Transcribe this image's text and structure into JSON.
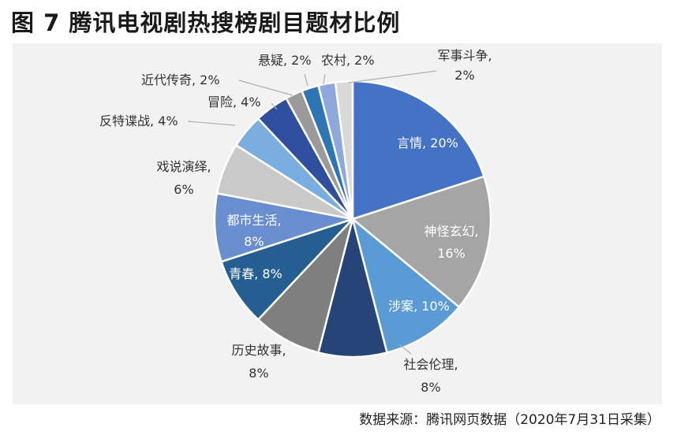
{
  "title": "图 7 腾讯电视剧热搜榜剧目题材比例",
  "source": "数据来源：腾讯网页数据（2020年7月31日采集）",
  "chart_data": {
    "type": "pie",
    "title": "图 7 腾讯电视剧热搜榜剧目题材比例",
    "unit": "%",
    "slices": [
      {
        "name": "言情",
        "value": 20,
        "color": "#4472c4",
        "label_lines": [
          "言情, 20%"
        ]
      },
      {
        "name": "神怪玄幻",
        "value": 16,
        "color": "#a5a5a5",
        "label_lines": [
          "神怪玄幻,",
          "16%"
        ]
      },
      {
        "name": "涉案",
        "value": 10,
        "color": "#5b9bd5",
        "label_lines": [
          "涉案, 10%"
        ]
      },
      {
        "name": "社会伦理",
        "value": 8,
        "color": "#264478",
        "label_lines": [
          "社会伦理,",
          "8%"
        ]
      },
      {
        "name": "历史故事",
        "value": 8,
        "color": "#7f7f7f",
        "label_lines": [
          "历史故事,",
          "8%"
        ]
      },
      {
        "name": "青春",
        "value": 8,
        "color": "#255e91",
        "label_lines": [
          "青春, 8%"
        ]
      },
      {
        "name": "都市生活",
        "value": 8,
        "color": "#698ed0",
        "label_lines": [
          "都市生活,",
          "8%"
        ]
      },
      {
        "name": "戏说演绎",
        "value": 6,
        "color": "#c9c9c9",
        "label_lines": [
          "戏说演绎,",
          "6%"
        ]
      },
      {
        "name": "反特谍战",
        "value": 4,
        "color": "#7aaee0",
        "label_lines": [
          "反特谍战, 4%"
        ]
      },
      {
        "name": "冒险",
        "value": 4,
        "color": "#2f4f9e",
        "label_lines": [
          "冒险, 4%"
        ]
      },
      {
        "name": "近代传奇",
        "value": 2,
        "color": "#9a9a9a",
        "label_lines": [
          "近代传奇, 2%"
        ]
      },
      {
        "name": "悬疑",
        "value": 2,
        "color": "#2e75b6",
        "label_lines": [
          "悬疑, 2%"
        ]
      },
      {
        "name": "农村",
        "value": 2,
        "color": "#8fa8dc",
        "label_lines": [
          "农村, 2%"
        ]
      },
      {
        "name": "军事斗争",
        "value": 2,
        "color": "#d9d9d9",
        "label_lines": [
          "军事斗争,",
          "2%"
        ]
      }
    ]
  }
}
